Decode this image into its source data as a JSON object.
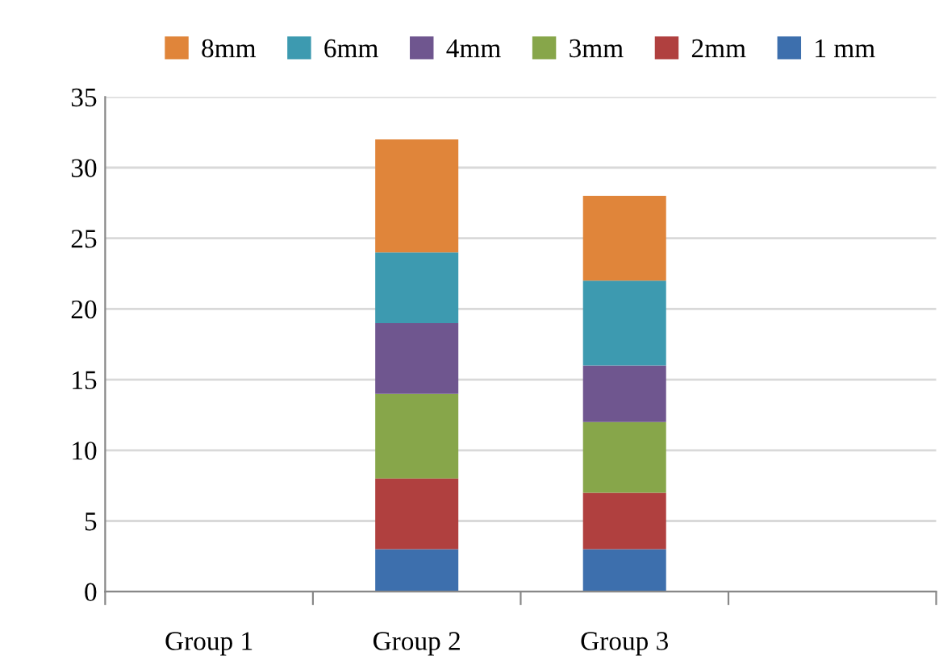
{
  "chart_data": {
    "type": "bar",
    "stacked": true,
    "categories": [
      "Group 1",
      "Group 2",
      "Group 3",
      null
    ],
    "series": [
      {
        "name": "1 mm",
        "color": "#3d6fad",
        "values": [
          null,
          3,
          3,
          null
        ]
      },
      {
        "name": "2mm",
        "color": "#b0403f",
        "values": [
          null,
          5,
          4,
          null
        ]
      },
      {
        "name": "3mm",
        "color": "#87a64a",
        "values": [
          null,
          6,
          5,
          null
        ]
      },
      {
        "name": "4mm",
        "color": "#6f568f",
        "values": [
          null,
          5,
          4,
          null
        ]
      },
      {
        "name": "6mm",
        "color": "#3d9ab0",
        "values": [
          null,
          5,
          6,
          null
        ]
      },
      {
        "name": "8mm",
        "color": "#e0853a",
        "values": [
          null,
          8,
          6,
          null
        ]
      }
    ],
    "ylim": [
      0,
      35
    ],
    "yticks": [
      0,
      5,
      10,
      15,
      20,
      25,
      30,
      35
    ],
    "grid": "y",
    "legend": "top"
  }
}
